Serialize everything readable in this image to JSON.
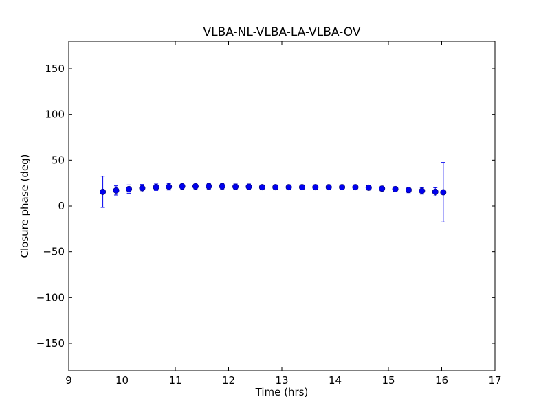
{
  "chart_data": {
    "type": "scatter",
    "title": "VLBA-NL-VLBA-LA-VLBA-OV",
    "xlabel": "Time (hrs)",
    "ylabel": "Closure phase (deg)",
    "xlim": [
      9,
      17
    ],
    "ylim": [
      -180,
      180
    ],
    "xticks": [
      9,
      10,
      11,
      12,
      13,
      14,
      15,
      16,
      17
    ],
    "xtick_labels": [
      "9",
      "10",
      "11",
      "12",
      "13",
      "14",
      "15",
      "16",
      "17"
    ],
    "yticks": [
      150,
      100,
      50,
      0,
      -50,
      -100,
      -150
    ],
    "ytick_labels": [
      "150",
      "100",
      "50",
      "0",
      "−50",
      "−100",
      "−150"
    ],
    "grid": false,
    "legend": "none",
    "color": "#0000ee",
    "series": [
      {
        "x": [
          9.64,
          9.89,
          10.13,
          10.38,
          10.64,
          10.88,
          11.13,
          11.38,
          11.63,
          11.88,
          12.13,
          12.38,
          12.63,
          12.88,
          13.13,
          13.38,
          13.63,
          13.88,
          14.13,
          14.38,
          14.63,
          14.88,
          15.13,
          15.38,
          15.63,
          15.88,
          16.03
        ],
        "y": [
          15.5,
          17,
          18.5,
          19.5,
          20.5,
          21,
          21.5,
          21.5,
          21.5,
          21.5,
          21,
          21,
          20.5,
          20.5,
          20.5,
          20.5,
          20.5,
          20.5,
          20.5,
          20.5,
          20,
          19,
          18.5,
          17.5,
          16.5,
          15.5,
          15
        ],
        "yerr": [
          17,
          5,
          4.5,
          4,
          3.5,
          3.5,
          3.5,
          3.5,
          3,
          3,
          3,
          3,
          2.5,
          2.5,
          2.5,
          2.5,
          2.5,
          2.5,
          2.5,
          2.5,
          2.5,
          2.5,
          2.5,
          3,
          3.5,
          4.5,
          32.5
        ]
      }
    ]
  }
}
